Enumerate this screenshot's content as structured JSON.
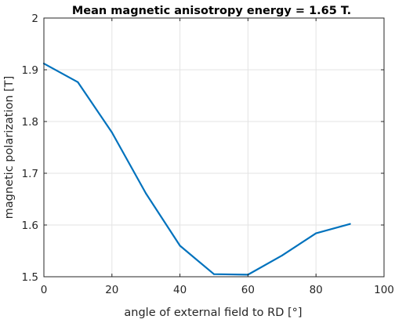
{
  "colors": {
    "series": "#0072bd",
    "axis": "#262626",
    "grid": "#e3e3e3"
  },
  "chart_data": {
    "type": "line",
    "title": "Mean magnetic anisotropy energy = 1.65 T.",
    "xlabel": "angle of external field to RD [°]",
    "ylabel": "magnetic polarization [T]",
    "xlim": [
      0,
      100
    ],
    "ylim": [
      1.5,
      2
    ],
    "xticks": [
      0,
      20,
      40,
      60,
      80,
      100
    ],
    "xtick_labels": [
      "0",
      "20",
      "40",
      "60",
      "80",
      "100"
    ],
    "yticks": [
      1.5,
      1.6,
      1.7,
      1.8,
      1.9,
      2
    ],
    "ytick_labels": [
      "1.5",
      "1.6",
      "1.7",
      "1.8",
      "1.9",
      "2"
    ],
    "grid": true,
    "series": [
      {
        "x": [
          0,
          10,
          20,
          30,
          40,
          50,
          60,
          70,
          80,
          90
        ],
        "y": [
          1.912,
          1.876,
          1.779,
          1.661,
          1.56,
          1.505,
          1.504,
          1.541,
          1.584,
          1.602
        ]
      }
    ]
  }
}
